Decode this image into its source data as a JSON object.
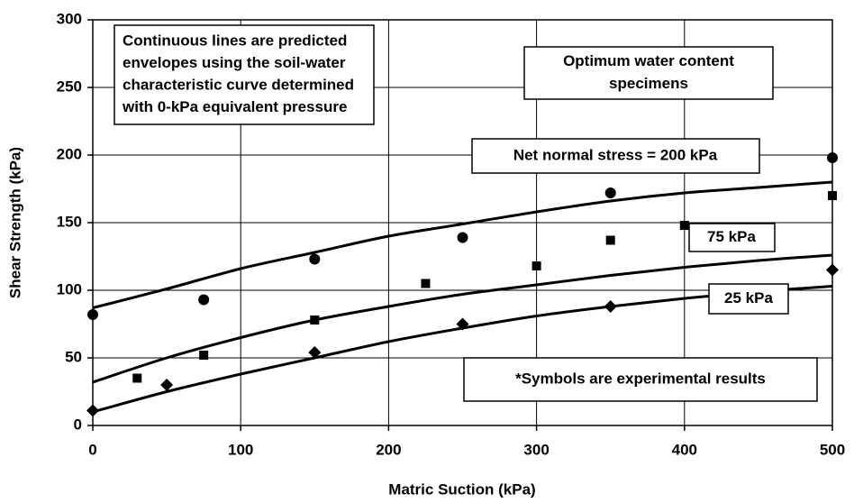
{
  "chart_data": {
    "type": "scatter",
    "x_label": "Matric Suction (kPa)",
    "y_label": "Shear Strength (kPa)",
    "xlim": [
      0,
      500
    ],
    "xticks": [
      0,
      100,
      200,
      300,
      400,
      500
    ],
    "ylim": [
      0,
      300
    ],
    "yticks": [
      0,
      50,
      100,
      150,
      200,
      250,
      300
    ],
    "grid": true,
    "curves": {
      "x": [
        0,
        50,
        100,
        150,
        200,
        250,
        300,
        350,
        400,
        450,
        500
      ],
      "series": [
        {
          "values": [
            87,
            101,
            116,
            128,
            140,
            149,
            158,
            166,
            172,
            176,
            180
          ],
          "color": "#000000"
        },
        {
          "values": [
            32,
            50,
            65,
            78,
            88,
            97,
            104,
            111,
            117,
            122,
            126
          ],
          "color": "#000000"
        },
        {
          "values": [
            10,
            25,
            38,
            50,
            62,
            72,
            81,
            88,
            94,
            99,
            103
          ],
          "color": "#000000"
        }
      ]
    },
    "points": [
      {
        "marker": "circle",
        "color": "#000000",
        "x": [
          0,
          75,
          150,
          250,
          350,
          500
        ],
        "values": [
          82,
          93,
          123,
          139,
          172,
          198
        ]
      },
      {
        "marker": "square",
        "color": "#000000",
        "x": [
          30,
          75,
          150,
          225,
          300,
          350,
          400,
          500
        ],
        "values": [
          35,
          52,
          78,
          105,
          118,
          137,
          148,
          170
        ]
      },
      {
        "marker": "diamond",
        "color": "#000000",
        "x": [
          0,
          50,
          150,
          250,
          350,
          500
        ],
        "values": [
          11,
          30,
          54,
          75,
          88,
          115
        ]
      }
    ],
    "annotations": [
      {
        "lines": [
          "Continuous lines are predicted",
          "envelopes using the soil-water",
          "characteristic curve determined",
          "with 0-kPa equivalent pressure"
        ]
      },
      {
        "lines": [
          "Optimum water content",
          "specimens"
        ]
      },
      {
        "lines": [
          "Net normal stress = 200 kPa"
        ]
      },
      {
        "lines": [
          "75 kPa"
        ]
      },
      {
        "lines": [
          "25 kPa"
        ]
      },
      {
        "lines": [
          "*Symbols are experimental results"
        ]
      }
    ]
  }
}
